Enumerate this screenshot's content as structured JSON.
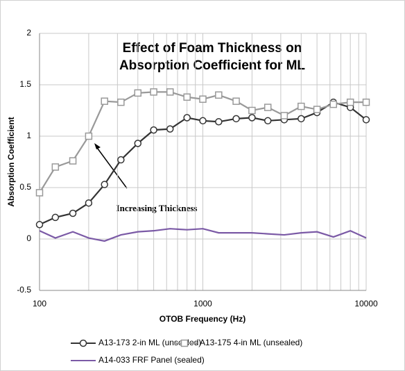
{
  "chart_data": {
    "type": "line",
    "title": [
      "Effect of Foam Thickness on",
      "Absorption Coefficient for ML"
    ],
    "annotation": "Increasing Thickness",
    "x_label": "OTOB Frequency (Hz)",
    "y_label": "Absorption Coefficient",
    "x": [
      100,
      125,
      160,
      200,
      250,
      315,
      400,
      500,
      630,
      800,
      1000,
      1250,
      1600,
      2000,
      2500,
      3150,
      4000,
      5000,
      6300,
      8000,
      10000
    ],
    "series": [
      {
        "name": "A13-173 2-in ML (unsealed)",
        "color": "#333333",
        "marker": "circle",
        "values": [
          0.14,
          0.21,
          0.25,
          0.35,
          0.53,
          0.77,
          0.93,
          1.06,
          1.07,
          1.18,
          1.15,
          1.14,
          1.17,
          1.18,
          1.15,
          1.16,
          1.17,
          1.23,
          1.33,
          1.28,
          1.16
        ]
      },
      {
        "name": "A13-175 4-in ML (unsealed)",
        "color": "#999999",
        "marker": "square",
        "values": [
          0.45,
          0.7,
          0.76,
          1.0,
          1.34,
          1.33,
          1.42,
          1.43,
          1.43,
          1.38,
          1.36,
          1.4,
          1.34,
          1.25,
          1.28,
          1.2,
          1.29,
          1.26,
          1.31,
          1.33,
          1.33
        ]
      },
      {
        "name": "A14-033 FRF Panel (sealed)",
        "color": "#7b5aa6",
        "marker": "none",
        "values": [
          0.08,
          0.01,
          0.07,
          0.01,
          -0.02,
          0.04,
          0.07,
          0.08,
          0.1,
          0.09,
          0.1,
          0.06,
          0.06,
          0.06,
          0.05,
          0.04,
          0.06,
          0.07,
          0.02,
          0.08,
          0.01
        ]
      }
    ],
    "x_log": true,
    "minor_grid": true,
    "grid": true,
    "xlim": [
      100,
      10000
    ],
    "xticks": [
      100,
      1000,
      10000
    ],
    "ylim": [
      -0.5,
      2
    ],
    "yticks": [
      -0.5,
      0,
      0.5,
      1,
      1.5,
      2
    ],
    "legend": "bottom"
  }
}
